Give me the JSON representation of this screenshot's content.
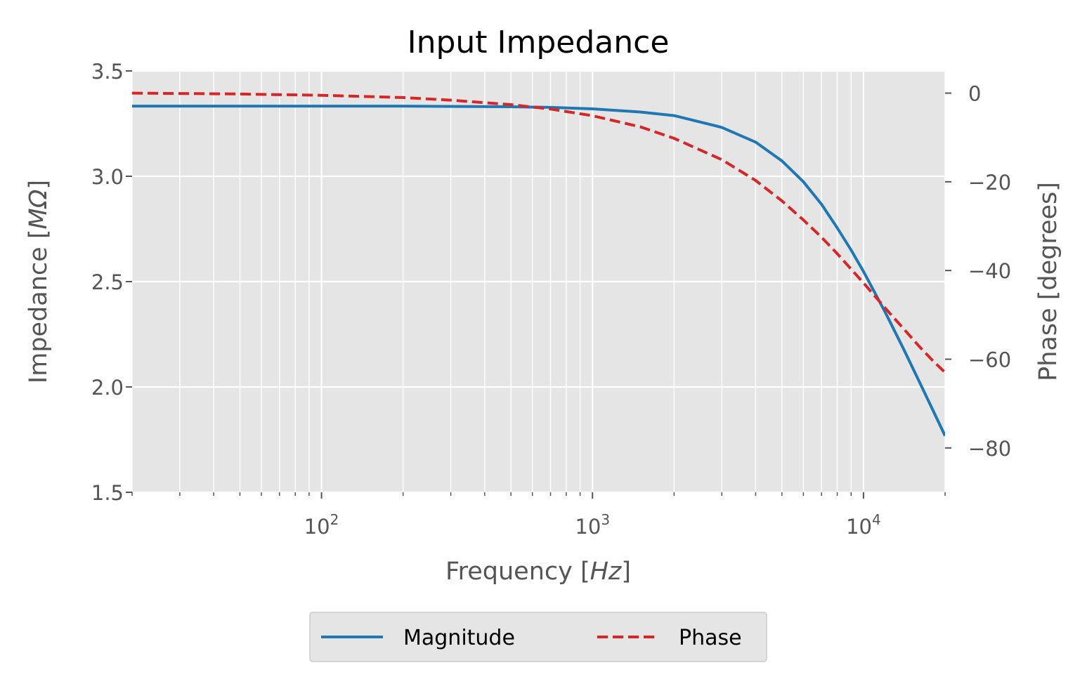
{
  "chart_data": {
    "type": "line",
    "title": "Input Impedance",
    "xlabel": "Frequency [Hz]",
    "xlabel_parts": {
      "prefix": "Frequency [",
      "unit": "Hz",
      "suffix": "]"
    },
    "ylabel": "Impedance [MΩ]",
    "ylabel_parts": {
      "prefix": "Impedance [",
      "unit": "MΩ",
      "suffix": "]"
    },
    "y2label": "Phase [degrees]",
    "xscale": "log",
    "xlim": [
      20,
      20000
    ],
    "ylim": [
      1.5,
      3.5
    ],
    "y2lim": [
      -90,
      5
    ],
    "grid": true,
    "legend_position": "bottom-center",
    "x_ticks": [
      {
        "base": "10",
        "exp": "2",
        "value": 100
      },
      {
        "base": "10",
        "exp": "3",
        "value": 1000
      },
      {
        "base": "10",
        "exp": "4",
        "value": 10000
      }
    ],
    "y_ticks": [
      "1.5",
      "2.0",
      "2.5",
      "3.0",
      "3.5"
    ],
    "y2_ticks": [
      "0",
      "−20",
      "−40",
      "−60",
      "−80"
    ],
    "series": [
      {
        "name": "Magnitude",
        "axis": "left",
        "color": "#1f77b4",
        "style": "solid",
        "x": [
          20,
          50,
          100,
          200,
          500,
          700,
          1000,
          1500,
          2000,
          3000,
          4000,
          5000,
          6000,
          7000,
          8000,
          9000,
          10000,
          12000,
          14000,
          16000,
          18000,
          20000
        ],
        "values": [
          3.333,
          3.333,
          3.333,
          3.333,
          3.33,
          3.327,
          3.32,
          3.305,
          3.288,
          3.232,
          3.162,
          3.073,
          2.974,
          2.867,
          2.755,
          2.65,
          2.548,
          2.357,
          2.185,
          2.03,
          1.892,
          1.768
        ]
      },
      {
        "name": "Phase",
        "axis": "right",
        "color": "#d62728",
        "style": "dashed",
        "x": [
          20,
          50,
          100,
          200,
          300,
          500,
          700,
          1000,
          1500,
          2000,
          3000,
          4000,
          5000,
          6000,
          7000,
          8000,
          10000,
          12000,
          14000,
          16000,
          18000,
          20000
        ],
        "values": [
          0.0,
          -0.2,
          -0.5,
          -1.0,
          -1.6,
          -2.6,
          -3.6,
          -5.1,
          -7.6,
          -10.2,
          -15.0,
          -19.7,
          -24.3,
          -28.6,
          -32.5,
          -36.2,
          -42.8,
          -48.4,
          -53.0,
          -57.0,
          -60.3,
          -63.0
        ]
      }
    ]
  },
  "colors": {
    "plot_background": "#e5e5e5",
    "grid": "#ffffff",
    "magnitude": "#1f77b4",
    "phase": "#d62728"
  }
}
